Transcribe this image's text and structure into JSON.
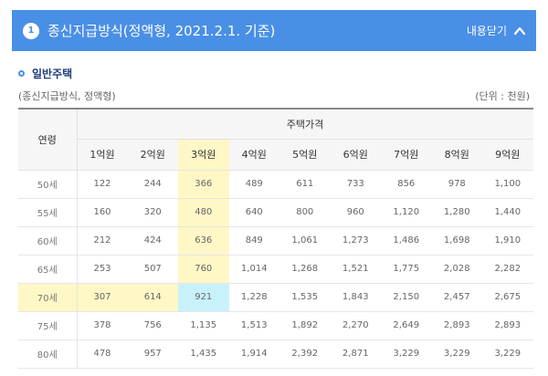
{
  "header": {
    "step": "1",
    "title": "종신지급방식(정액형, 2021.2.1. 기준)",
    "toggle_label": "내용닫기",
    "color": "#4a8fe6"
  },
  "section": {
    "title": "일반주택"
  },
  "subtitle": "(종신지급방식, 정액형)",
  "unit": "(단위 : 천원)",
  "table": {
    "age_header": "연령",
    "price_header": "주택가격",
    "prices": [
      "1억원",
      "2억원",
      "3억원",
      "4억원",
      "5억원",
      "6억원",
      "7억원",
      "8억원",
      "9억원"
    ],
    "rows": [
      {
        "age": "50세",
        "values": [
          "122",
          "244",
          "366",
          "489",
          "611",
          "733",
          "856",
          "978",
          "1,100"
        ]
      },
      {
        "age": "55세",
        "values": [
          "160",
          "320",
          "480",
          "640",
          "800",
          "960",
          "1,120",
          "1,280",
          "1,440"
        ]
      },
      {
        "age": "60세",
        "values": [
          "212",
          "424",
          "636",
          "849",
          "1,061",
          "1,273",
          "1,486",
          "1,698",
          "1,910"
        ]
      },
      {
        "age": "65세",
        "values": [
          "253",
          "507",
          "760",
          "1,014",
          "1,268",
          "1,521",
          "1,775",
          "2,028",
          "2,282"
        ]
      },
      {
        "age": "70세",
        "values": [
          "307",
          "614",
          "921",
          "1,228",
          "1,535",
          "1,843",
          "2,150",
          "2,457",
          "2,675"
        ]
      },
      {
        "age": "75세",
        "values": [
          "378",
          "756",
          "1,135",
          "1,513",
          "1,892",
          "2,270",
          "2,649",
          "2,893",
          "2,893"
        ]
      },
      {
        "age": "80세",
        "values": [
          "478",
          "957",
          "1,435",
          "1,914",
          "2,392",
          "2,871",
          "3,229",
          "3,229",
          "3,229"
        ]
      }
    ],
    "highlight": {
      "col": 2,
      "row": 4,
      "yellow": "#fff7c6",
      "blue": "#c8f2fb"
    }
  }
}
